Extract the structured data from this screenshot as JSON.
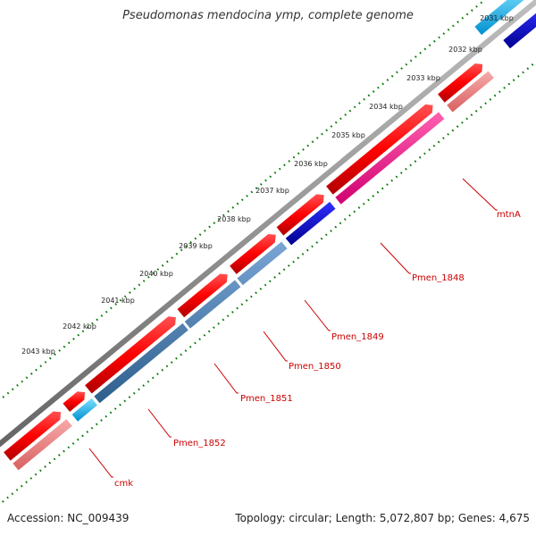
{
  "title": "Pseudomonas mendocina ymp, complete genome",
  "footer": {
    "accession": "Accession: NC_009439",
    "summary": "Topology: circular; Length: 5,072,807 bp; Genes: 4,675"
  },
  "scale_labels": [
    "2031 kbp",
    "2032 kbp",
    "2033 kbp",
    "2034 kbp",
    "2035 kbp",
    "2036 kbp",
    "2037 kbp",
    "2038 kbp",
    "2039 kbp",
    "2040 kbp",
    "2041 kbp",
    "2042 kbp",
    "2043 kbp"
  ],
  "gene_labels": [
    "mtnA",
    "Pmen_1848",
    "Pmen_1849",
    "Pmen_1850",
    "Pmen_1851",
    "Pmen_1852",
    "cmk"
  ],
  "colors": {
    "cds": "#ff0000",
    "gene_pink": "#f08080",
    "gene_magenta": "#ff1493",
    "gene_blue": "#0000cd",
    "gene_steelblue": "#4682b4",
    "gene_cyan": "#00bfff",
    "backbone": "#888888",
    "tick": "#007700",
    "label": "#cc0000"
  }
}
